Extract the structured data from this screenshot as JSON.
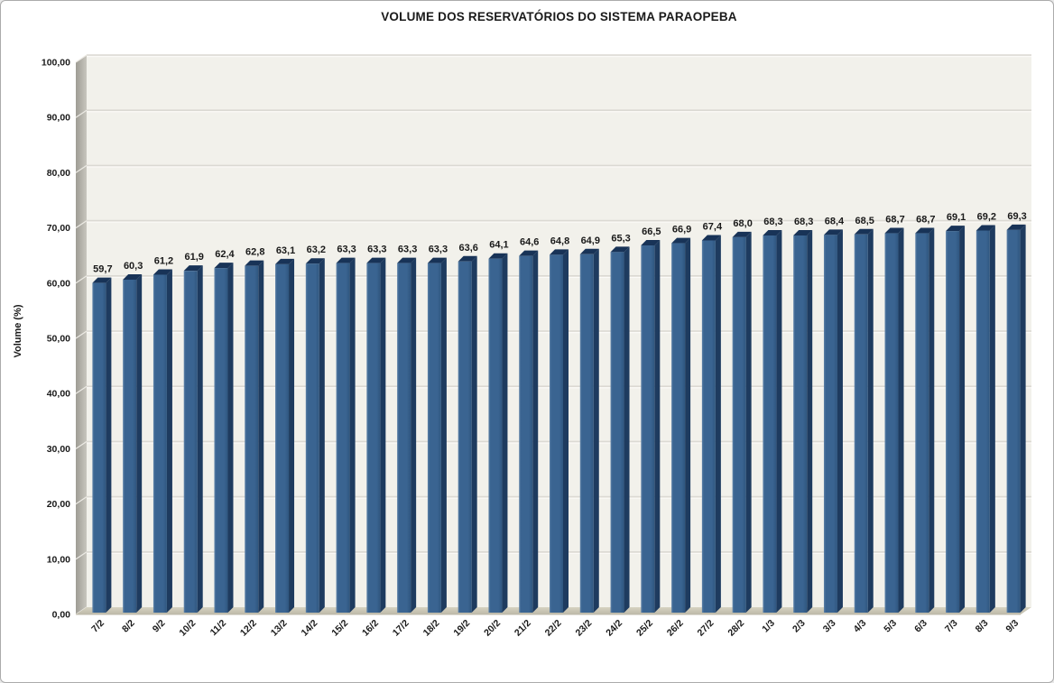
{
  "title": "VOLUME DOS RESERVATÓRIOS DO SISTEMA PARAOPEBA",
  "chart_data": {
    "type": "bar",
    "title": "VOLUME DOS RESERVATÓRIOS DO SISTEMA PARAOPEBA",
    "xlabel": "",
    "ylabel": "Volume (%)",
    "ylim": [
      0,
      100
    ],
    "ytick_step": 10,
    "ytick_labels": [
      "0,00",
      "10,00",
      "20,00",
      "30,00",
      "40,00",
      "50,00",
      "60,00",
      "70,00",
      "80,00",
      "90,00",
      "100,00"
    ],
    "grid": true,
    "legend": false,
    "style": "3d-column",
    "categories": [
      "7/2",
      "8/2",
      "9/2",
      "10/2",
      "11/2",
      "12/2",
      "13/2",
      "14/2",
      "15/2",
      "16/2",
      "17/2",
      "18/2",
      "19/2",
      "20/2",
      "21/2",
      "22/2",
      "23/2",
      "24/2",
      "25/2",
      "26/2",
      "27/2",
      "28/2",
      "1/3",
      "2/3",
      "3/3",
      "4/3",
      "5/3",
      "6/3",
      "7/3",
      "8/3",
      "9/3"
    ],
    "values": [
      59.7,
      60.3,
      61.2,
      61.9,
      62.4,
      62.8,
      63.1,
      63.2,
      63.3,
      63.3,
      63.3,
      63.3,
      63.6,
      64.1,
      64.6,
      64.8,
      64.9,
      65.3,
      66.5,
      66.9,
      67.4,
      68.0,
      68.3,
      68.3,
      68.4,
      68.5,
      68.7,
      68.7,
      69.1,
      69.2,
      69.3
    ],
    "value_labels": [
      "59,7",
      "60,3",
      "61,2",
      "61,9",
      "62,4",
      "62,8",
      "63,1",
      "63,2",
      "63,3",
      "63,3",
      "63,3",
      "63,3",
      "63,6",
      "64,1",
      "64,6",
      "64,8",
      "64,9",
      "65,3",
      "66,5",
      "66,9",
      "67,4",
      "68,0",
      "68,3",
      "68,3",
      "68,4",
      "68,5",
      "68,7",
      "68,7",
      "69,1",
      "69,2",
      "69,3"
    ],
    "colors": {
      "bar_front": "#3A6491",
      "bar_front_light": "#5E82A8",
      "bar_front_dark": "#2F567F",
      "bar_side": "#1E3B5F",
      "bar_top": "#183357",
      "plot_bg": "#F2F1EB",
      "gridline": "#DBD9D3",
      "gridline_highlight": "#FBFAF7",
      "wall_dark": "#9E9C94",
      "wall_light": "#C8C6BE",
      "floor": "#D6D2C0",
      "floor_dark": "#BDB9A9",
      "text": "#1A1A1A",
      "border": "#ABABAB"
    }
  }
}
